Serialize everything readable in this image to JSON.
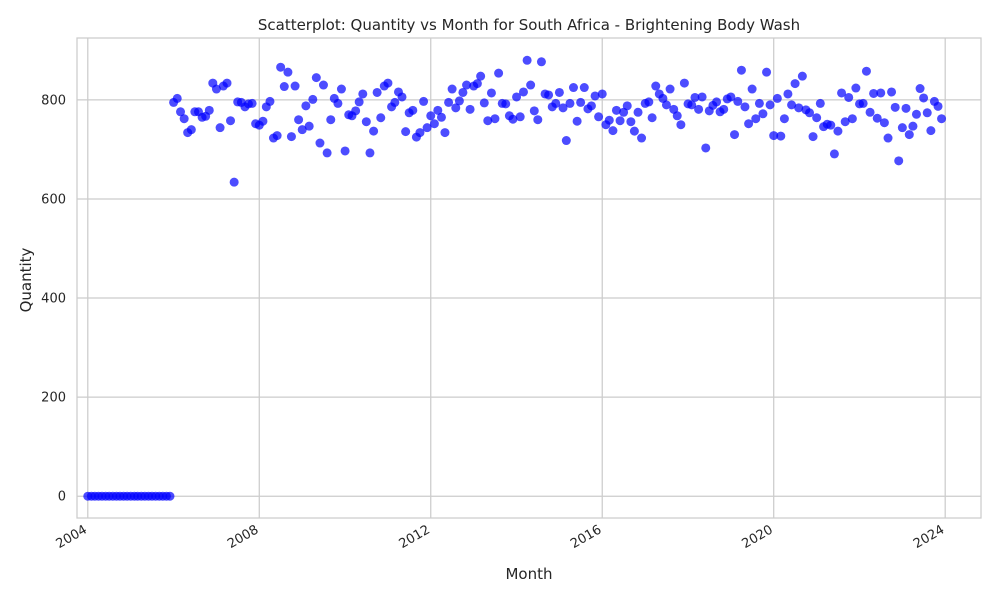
{
  "chart_data": {
    "type": "scatter",
    "title": "Scatterplot: Quantity vs Month for South Africa - Brightening Body Wash",
    "xlabel": "Month",
    "ylabel": "Quantity",
    "xlim": [
      "2003-10-01",
      "2024-11-01"
    ],
    "ylim": [
      -44,
      925
    ],
    "x_ticks": [
      "2004",
      "2008",
      "2012",
      "2016",
      "2020",
      "2024"
    ],
    "y_ticks": [
      "0",
      "200",
      "400",
      "600",
      "800"
    ],
    "y_tick_values": [
      0,
      200,
      400,
      600,
      800
    ],
    "grid": true,
    "legend": "none",
    "colors": {
      "marker": "#0000ff",
      "grid": "#cccccc",
      "axes_edge": "#cccccc",
      "background": "#ffffff"
    },
    "points": [
      [
        "2004-01",
        0
      ],
      [
        "2004-02",
        0
      ],
      [
        "2004-03",
        0
      ],
      [
        "2004-04",
        0
      ],
      [
        "2004-05",
        0
      ],
      [
        "2004-06",
        0
      ],
      [
        "2004-07",
        0
      ],
      [
        "2004-08",
        0
      ],
      [
        "2004-09",
        0
      ],
      [
        "2004-10",
        0
      ],
      [
        "2004-11",
        0
      ],
      [
        "2004-12",
        0
      ],
      [
        "2005-01",
        0
      ],
      [
        "2005-02",
        0
      ],
      [
        "2005-03",
        0
      ],
      [
        "2005-04",
        0
      ],
      [
        "2005-05",
        0
      ],
      [
        "2005-06",
        0
      ],
      [
        "2005-07",
        0
      ],
      [
        "2005-08",
        0
      ],
      [
        "2005-09",
        0
      ],
      [
        "2005-10",
        0
      ],
      [
        "2005-11",
        0
      ],
      [
        "2005-12",
        0
      ],
      [
        "2006-01",
        795
      ],
      [
        "2006-02",
        803
      ],
      [
        "2006-03",
        776
      ],
      [
        "2006-04",
        762
      ],
      [
        "2006-05",
        734
      ],
      [
        "2006-06",
        740
      ],
      [
        "2006-07",
        776
      ],
      [
        "2006-08",
        776
      ],
      [
        "2006-09",
        765
      ],
      [
        "2006-10",
        767
      ],
      [
        "2006-11",
        779
      ],
      [
        "2006-12",
        834
      ],
      [
        "2007-01",
        822
      ],
      [
        "2007-02",
        744
      ],
      [
        "2007-03",
        828
      ],
      [
        "2007-04",
        834
      ],
      [
        "2007-05",
        758
      ],
      [
        "2007-06",
        634
      ],
      [
        "2007-07",
        796
      ],
      [
        "2007-08",
        795
      ],
      [
        "2007-09",
        786
      ],
      [
        "2007-10",
        792
      ],
      [
        "2007-11",
        793
      ],
      [
        "2007-12",
        752
      ],
      [
        "2008-01",
        749
      ],
      [
        "2008-02",
        757
      ],
      [
        "2008-03",
        786
      ],
      [
        "2008-04",
        797
      ],
      [
        "2008-05",
        723
      ],
      [
        "2008-06",
        728
      ],
      [
        "2008-07",
        866
      ],
      [
        "2008-08",
        827
      ],
      [
        "2008-09",
        856
      ],
      [
        "2008-10",
        726
      ],
      [
        "2008-11",
        828
      ],
      [
        "2008-12",
        760
      ],
      [
        "2009-01",
        740
      ],
      [
        "2009-02",
        788
      ],
      [
        "2009-03",
        747
      ],
      [
        "2009-04",
        801
      ],
      [
        "2009-05",
        845
      ],
      [
        "2009-06",
        713
      ],
      [
        "2009-07",
        830
      ],
      [
        "2009-08",
        693
      ],
      [
        "2009-09",
        760
      ],
      [
        "2009-10",
        803
      ],
      [
        "2009-11",
        793
      ],
      [
        "2009-12",
        822
      ],
      [
        "2010-01",
        697
      ],
      [
        "2010-02",
        770
      ],
      [
        "2010-03",
        768
      ],
      [
        "2010-04",
        778
      ],
      [
        "2010-05",
        796
      ],
      [
        "2010-06",
        812
      ],
      [
        "2010-07",
        756
      ],
      [
        "2010-08",
        693
      ],
      [
        "2010-09",
        737
      ],
      [
        "2010-10",
        815
      ],
      [
        "2010-11",
        764
      ],
      [
        "2010-12",
        828
      ],
      [
        "2011-01",
        834
      ],
      [
        "2011-02",
        786
      ],
      [
        "2011-03",
        795
      ],
      [
        "2011-04",
        816
      ],
      [
        "2011-05",
        806
      ],
      [
        "2011-06",
        736
      ],
      [
        "2011-07",
        774
      ],
      [
        "2011-08",
        779
      ],
      [
        "2011-09",
        725
      ],
      [
        "2011-10",
        734
      ],
      [
        "2011-11",
        797
      ],
      [
        "2011-12",
        744
      ],
      [
        "2012-01",
        768
      ],
      [
        "2012-02",
        752
      ],
      [
        "2012-03",
        779
      ],
      [
        "2012-04",
        765
      ],
      [
        "2012-05",
        734
      ],
      [
        "2012-06",
        795
      ],
      [
        "2012-07",
        822
      ],
      [
        "2012-08",
        784
      ],
      [
        "2012-09",
        798
      ],
      [
        "2012-10",
        815
      ],
      [
        "2012-11",
        830
      ],
      [
        "2012-12",
        781
      ],
      [
        "2013-01",
        828
      ],
      [
        "2013-02",
        833
      ],
      [
        "2013-03",
        848
      ],
      [
        "2013-04",
        794
      ],
      [
        "2013-05",
        758
      ],
      [
        "2013-06",
        814
      ],
      [
        "2013-07",
        762
      ],
      [
        "2013-08",
        854
      ],
      [
        "2013-09",
        793
      ],
      [
        "2013-10",
        792
      ],
      [
        "2013-11",
        768
      ],
      [
        "2013-12",
        761
      ],
      [
        "2014-01",
        806
      ],
      [
        "2014-02",
        766
      ],
      [
        "2014-03",
        816
      ],
      [
        "2014-04",
        880
      ],
      [
        "2014-05",
        830
      ],
      [
        "2014-06",
        778
      ],
      [
        "2014-07",
        760
      ],
      [
        "2014-08",
        877
      ],
      [
        "2014-09",
        812
      ],
      [
        "2014-10",
        810
      ],
      [
        "2014-11",
        786
      ],
      [
        "2014-12",
        793
      ],
      [
        "2015-01",
        815
      ],
      [
        "2015-02",
        784
      ],
      [
        "2015-03",
        718
      ],
      [
        "2015-04",
        793
      ],
      [
        "2015-05",
        825
      ],
      [
        "2015-06",
        757
      ],
      [
        "2015-07",
        795
      ],
      [
        "2015-08",
        825
      ],
      [
        "2015-09",
        782
      ],
      [
        "2015-10",
        788
      ],
      [
        "2015-11",
        808
      ],
      [
        "2015-12",
        766
      ],
      [
        "2016-01",
        812
      ],
      [
        "2016-02",
        750
      ],
      [
        "2016-03",
        759
      ],
      [
        "2016-04",
        738
      ],
      [
        "2016-05",
        779
      ],
      [
        "2016-06",
        758
      ],
      [
        "2016-07",
        775
      ],
      [
        "2016-08",
        788
      ],
      [
        "2016-09",
        756
      ],
      [
        "2016-10",
        737
      ],
      [
        "2016-11",
        775
      ],
      [
        "2016-12",
        723
      ],
      [
        "2017-01",
        793
      ],
      [
        "2017-02",
        796
      ],
      [
        "2017-03",
        764
      ],
      [
        "2017-04",
        828
      ],
      [
        "2017-05",
        812
      ],
      [
        "2017-06",
        803
      ],
      [
        "2017-07",
        790
      ],
      [
        "2017-08",
        822
      ],
      [
        "2017-09",
        781
      ],
      [
        "2017-10",
        768
      ],
      [
        "2017-11",
        750
      ],
      [
        "2017-12",
        834
      ],
      [
        "2018-01",
        792
      ],
      [
        "2018-02",
        790
      ],
      [
        "2018-03",
        805
      ],
      [
        "2018-04",
        781
      ],
      [
        "2018-05",
        806
      ],
      [
        "2018-06",
        703
      ],
      [
        "2018-07",
        778
      ],
      [
        "2018-08",
        789
      ],
      [
        "2018-09",
        796
      ],
      [
        "2018-10",
        776
      ],
      [
        "2018-11",
        781
      ],
      [
        "2018-12",
        802
      ],
      [
        "2019-01",
        806
      ],
      [
        "2019-02",
        730
      ],
      [
        "2019-03",
        797
      ],
      [
        "2019-04",
        860
      ],
      [
        "2019-05",
        786
      ],
      [
        "2019-06",
        752
      ],
      [
        "2019-07",
        822
      ],
      [
        "2019-08",
        762
      ],
      [
        "2019-09",
        793
      ],
      [
        "2019-10",
        772
      ],
      [
        "2019-11",
        856
      ],
      [
        "2019-12",
        790
      ],
      [
        "2020-01",
        728
      ],
      [
        "2020-02",
        803
      ],
      [
        "2020-03",
        727
      ],
      [
        "2020-04",
        762
      ],
      [
        "2020-05",
        812
      ],
      [
        "2020-06",
        790
      ],
      [
        "2020-07",
        833
      ],
      [
        "2020-08",
        784
      ],
      [
        "2020-09",
        848
      ],
      [
        "2020-10",
        780
      ],
      [
        "2020-11",
        774
      ],
      [
        "2020-12",
        726
      ],
      [
        "2021-01",
        764
      ],
      [
        "2021-02",
        793
      ],
      [
        "2021-03",
        746
      ],
      [
        "2021-04",
        751
      ],
      [
        "2021-05",
        749
      ],
      [
        "2021-06",
        691
      ],
      [
        "2021-07",
        737
      ],
      [
        "2021-08",
        814
      ],
      [
        "2021-09",
        756
      ],
      [
        "2021-10",
        805
      ],
      [
        "2021-11",
        762
      ],
      [
        "2021-12",
        824
      ],
      [
        "2022-01",
        792
      ],
      [
        "2022-02",
        793
      ],
      [
        "2022-03",
        858
      ],
      [
        "2022-04",
        775
      ],
      [
        "2022-05",
        813
      ],
      [
        "2022-06",
        763
      ],
      [
        "2022-07",
        814
      ],
      [
        "2022-08",
        754
      ],
      [
        "2022-09",
        723
      ],
      [
        "2022-10",
        816
      ],
      [
        "2022-11",
        785
      ],
      [
        "2022-12",
        677
      ],
      [
        "2023-01",
        744
      ],
      [
        "2023-02",
        783
      ],
      [
        "2023-03",
        730
      ],
      [
        "2023-04",
        747
      ],
      [
        "2023-05",
        771
      ],
      [
        "2023-06",
        823
      ],
      [
        "2023-07",
        804
      ],
      [
        "2023-08",
        774
      ],
      [
        "2023-09",
        738
      ],
      [
        "2023-10",
        797
      ],
      [
        "2023-11",
        787
      ],
      [
        "2023-12",
        762
      ]
    ]
  }
}
